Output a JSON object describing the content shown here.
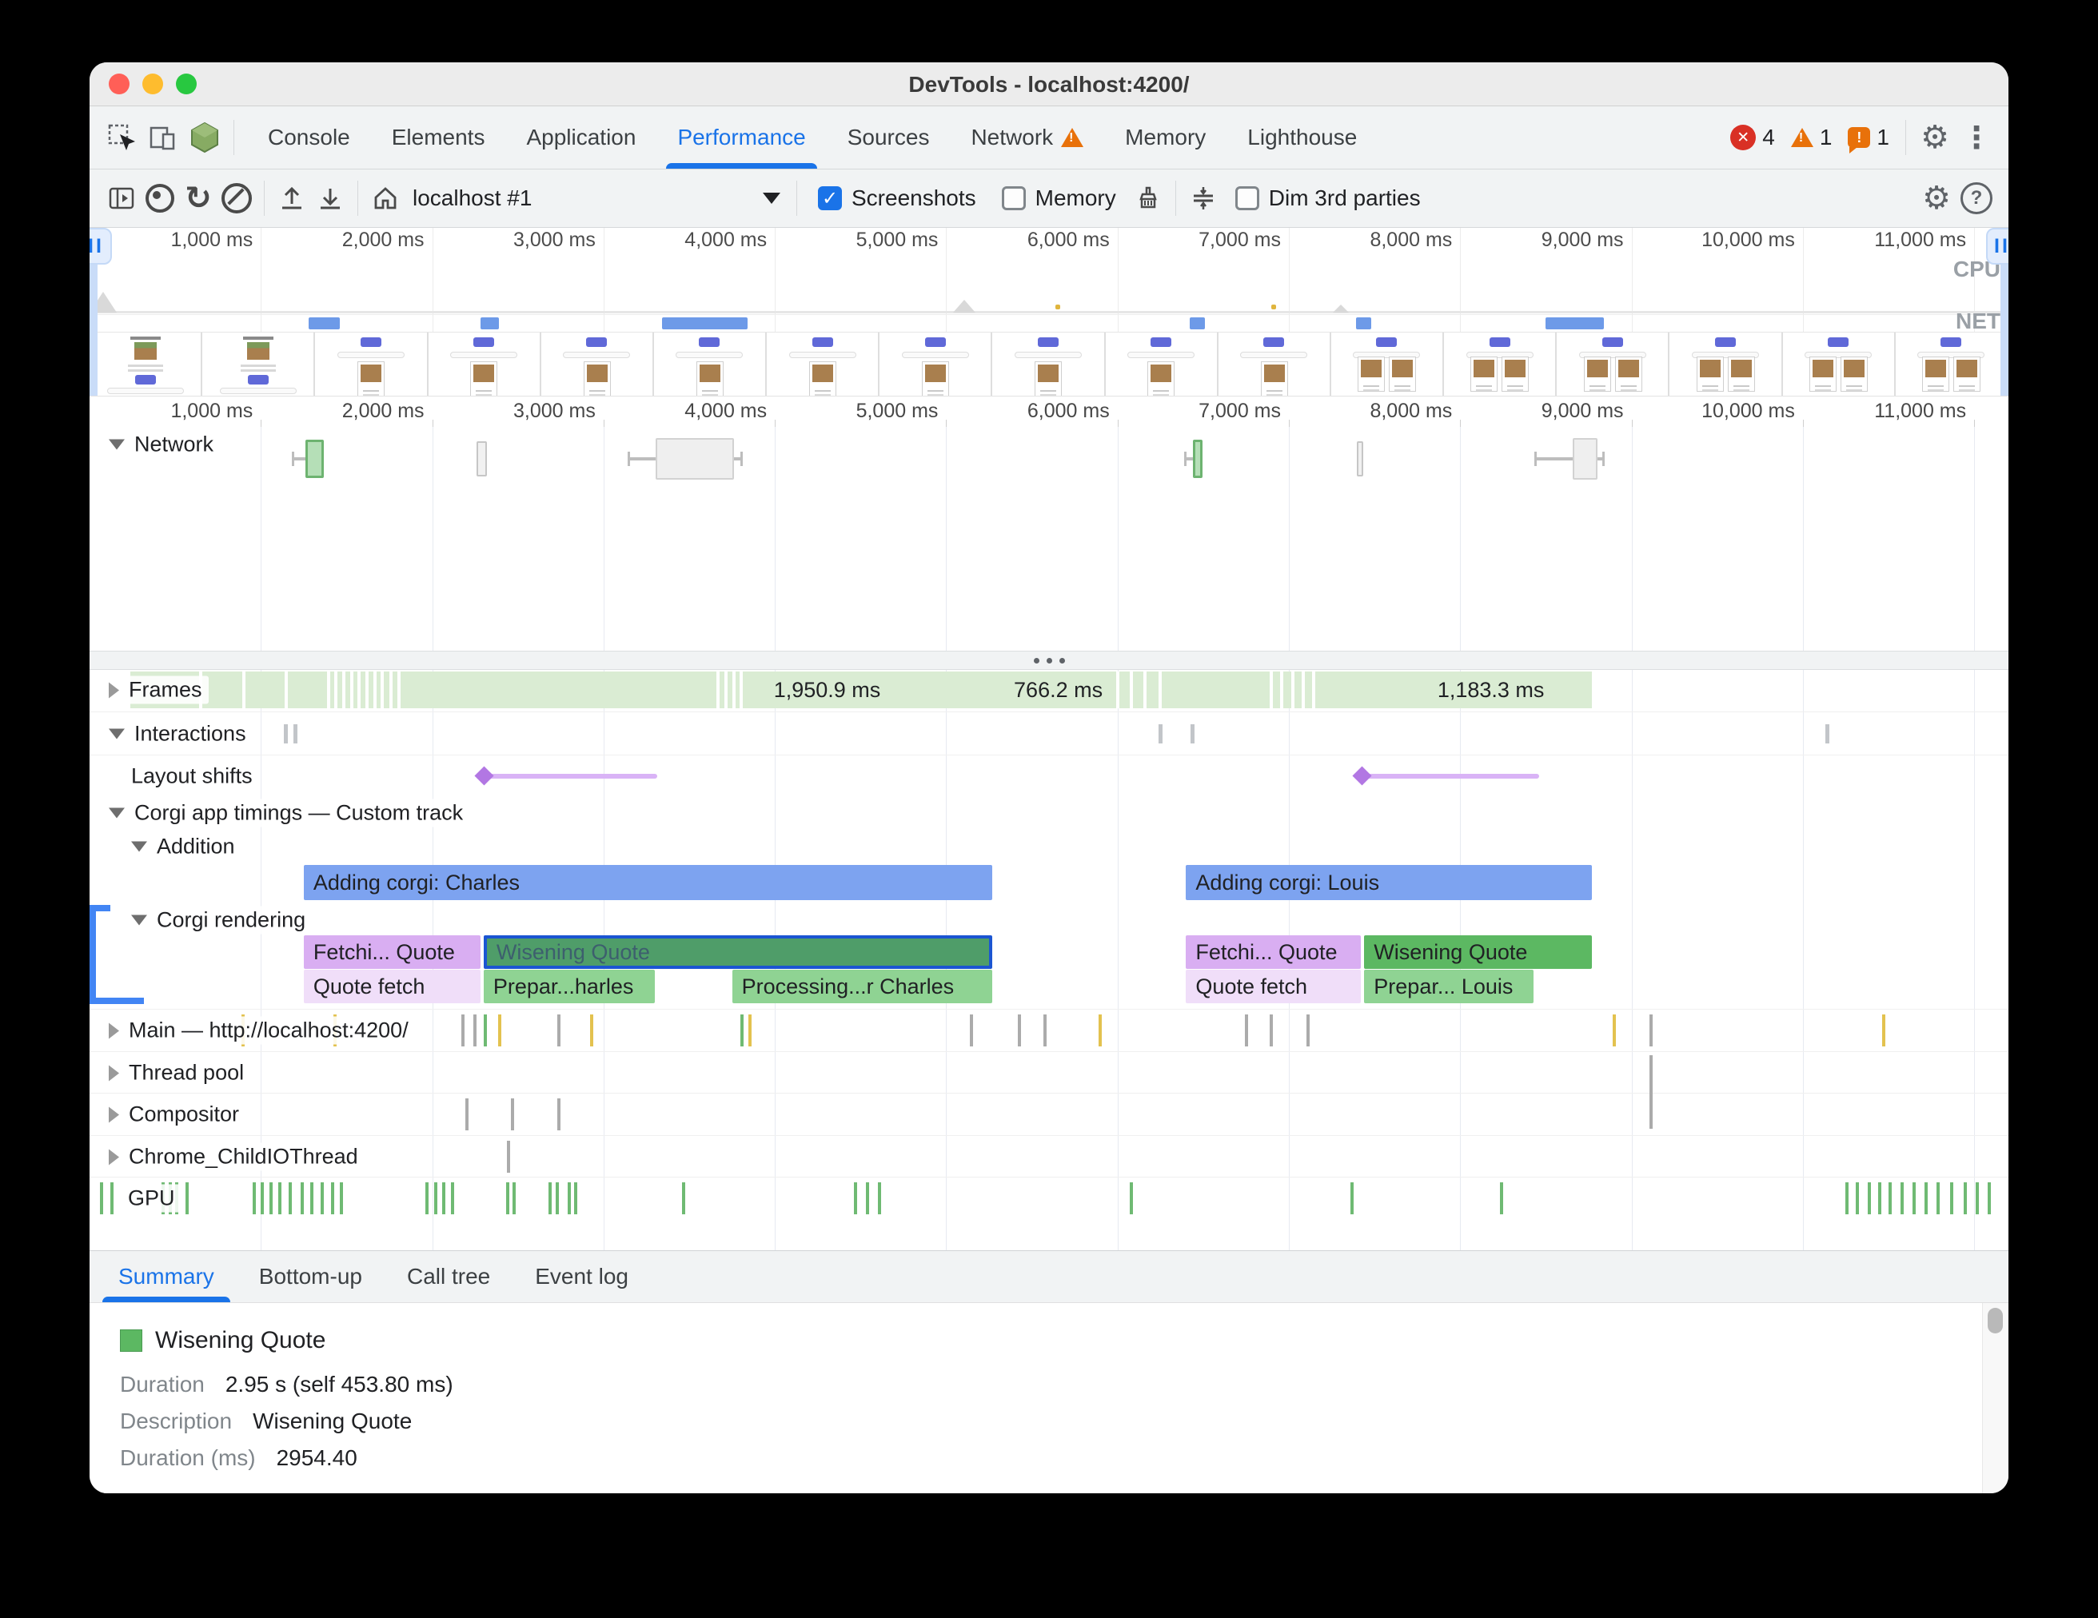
{
  "window": {
    "title": "DevTools - localhost:4200/"
  },
  "tabbar": {
    "tabs": [
      {
        "label": "Console"
      },
      {
        "label": "Elements"
      },
      {
        "label": "Application"
      },
      {
        "label": "Performance",
        "active": true
      },
      {
        "label": "Sources"
      },
      {
        "label": "Network",
        "warning": true
      },
      {
        "label": "Memory"
      },
      {
        "label": "Lighthouse"
      }
    ],
    "error_count": "4",
    "warning_count": "1",
    "issue_count": "1"
  },
  "toolbar": {
    "session_label": "localhost #1",
    "screenshots_label": "Screenshots",
    "memory_label": "Memory",
    "dim_label": "Dim 3rd parties",
    "screenshots_checked": true,
    "memory_checked": false,
    "dim_checked": false
  },
  "timeline": {
    "total_ms": 11200,
    "ticks": [
      {
        "ms": 1000,
        "label": "1,000 ms"
      },
      {
        "ms": 2000,
        "label": "2,000 ms"
      },
      {
        "ms": 3000,
        "label": "3,000 ms"
      },
      {
        "ms": 4000,
        "label": "4,000 ms"
      },
      {
        "ms": 5000,
        "label": "5,000 ms"
      },
      {
        "ms": 6000,
        "label": "6,000 ms"
      },
      {
        "ms": 7000,
        "label": "7,000 ms"
      },
      {
        "ms": 8000,
        "label": "8,000 ms"
      },
      {
        "ms": 9000,
        "label": "9,000 ms"
      },
      {
        "ms": 10000,
        "label": "10,000 ms"
      },
      {
        "ms": 11000,
        "label": "11,000 ms"
      }
    ]
  },
  "overview": {
    "cpu_label": "CPU",
    "net_label": "NET",
    "net_bars": [
      {
        "start": 1280,
        "end": 1460
      },
      {
        "start": 2280,
        "end": 2390
      },
      {
        "start": 3340,
        "end": 3840
      },
      {
        "start": 6420,
        "end": 6510
      },
      {
        "start": 7390,
        "end": 7480
      },
      {
        "start": 8500,
        "end": 8840
      }
    ],
    "thumbs": [
      "v1",
      "v1",
      "v2",
      "v2",
      "v2",
      "v2",
      "v2",
      "v2",
      "v2",
      "v2",
      "v2",
      "v3",
      "v3",
      "v3",
      "v3",
      "v3",
      "v3"
    ]
  },
  "tracks": {
    "network": {
      "label": "Network",
      "requests": [
        {
          "start": 1261,
          "end": 1368,
          "kind": "green",
          "whisker_start": 1180
        },
        {
          "start": 2260,
          "end": 2320,
          "kind": "gray"
        },
        {
          "start": 3305,
          "end": 3762,
          "kind": "gray",
          "whisker_start": 3140,
          "whisker_end": 3800,
          "tall": true
        },
        {
          "start": 6441,
          "end": 6495,
          "kind": "green",
          "whisker_start": 6390
        },
        {
          "start": 7397,
          "end": 7435,
          "kind": "gray"
        },
        {
          "start": 8657,
          "end": 8801,
          "kind": "gray",
          "whisker_start": 8433,
          "whisker_end": 8830,
          "tall": true
        }
      ]
    },
    "frames": {
      "label": "Frames",
      "band": {
        "start": 240,
        "end": 8770
      },
      "gaps": [
        640,
        890,
        1140,
        1385,
        1430,
        1475,
        1520,
        1565,
        1610,
        1655,
        1700,
        1748,
        1795,
        3660,
        3705,
        3750,
        3795,
        5990,
        6070,
        6150,
        6240,
        6890,
        6950,
        7015,
        7075,
        7135
      ],
      "labels": [
        {
          "text": "1,950.9 ms",
          "ms": 4305
        },
        {
          "text": "766.2 ms",
          "ms": 5654
        },
        {
          "text": "1,183.3 ms",
          "ms": 8179
        }
      ]
    },
    "interactions": {
      "label": "Interactions",
      "ticks": [
        1135,
        1190,
        6240,
        6425,
        10130
      ]
    },
    "layout_shifts": {
      "label": "Layout shifts",
      "shifts": [
        {
          "start": 2302,
          "end": 3315
        },
        {
          "start": 7426,
          "end": 8462
        }
      ]
    },
    "custom": {
      "label": "Corgi app timings — Custom track",
      "addition_label": "Addition",
      "rendering_label": "Corgi rendering",
      "addition_bars": [
        {
          "label": "Adding corgi: Charles",
          "start": 1250,
          "end": 5270,
          "kind": "blue"
        },
        {
          "label": "Adding corgi: Louis",
          "start": 6400,
          "end": 8770,
          "kind": "blue"
        }
      ],
      "rendering_row1": [
        {
          "label": "Fetchi... Quote",
          "start": 1250,
          "end": 2280,
          "kind": "purple"
        },
        {
          "label": "Wisening Quote",
          "start": 2300,
          "end": 5270,
          "kind": "green_selected",
          "selected": true
        },
        {
          "label": "Fetchi... Quote",
          "start": 6400,
          "end": 7420,
          "kind": "purple"
        },
        {
          "label": "Wisening Quote",
          "start": 7440,
          "end": 8770,
          "kind": "green"
        }
      ],
      "rendering_row2": [
        {
          "label": "Quote fetch",
          "start": 1250,
          "end": 2280,
          "kind": "purple_light"
        },
        {
          "label": "Prepar...harles",
          "start": 2300,
          "end": 3300,
          "kind": "green_light"
        },
        {
          "label": "Processing...r Charles",
          "start": 3750,
          "end": 5270,
          "kind": "green_light"
        },
        {
          "label": "Quote fetch",
          "start": 6400,
          "end": 7420,
          "kind": "purple_light"
        },
        {
          "label": "Prepar... Louis",
          "start": 7440,
          "end": 8430,
          "kind": "green_light"
        }
      ]
    },
    "threads": [
      {
        "label": "Main — http://localhost:4200/",
        "ticks": [
          [
            888,
            "y"
          ],
          [
            1425,
            "y"
          ],
          [
            2171,
            "g"
          ],
          [
            2240,
            "g"
          ],
          [
            2300,
            "gr"
          ],
          [
            2386,
            "y"
          ],
          [
            2731,
            "g"
          ],
          [
            2922,
            "y"
          ],
          [
            3800,
            "gr"
          ],
          [
            3846,
            "y"
          ],
          [
            5139,
            "g"
          ],
          [
            5420,
            "g"
          ],
          [
            5568,
            "g"
          ],
          [
            5890,
            "y"
          ],
          [
            6744,
            "g"
          ],
          [
            6889,
            "g"
          ],
          [
            7103,
            "g"
          ],
          [
            8891,
            "y"
          ],
          [
            9106,
            "g"
          ],
          [
            10464,
            "y"
          ]
        ]
      },
      {
        "label": "Thread pool",
        "ticks": [
          [
            9106,
            "g",
            "tall"
          ]
        ]
      },
      {
        "label": "Compositor",
        "ticks": [
          [
            2195,
            "g"
          ],
          [
            2460,
            "g"
          ],
          [
            2731,
            "g"
          ]
        ]
      },
      {
        "label": "Chrome_ChildIOThread",
        "ticks": [
          [
            2437,
            "g"
          ]
        ]
      },
      {
        "label": "GPU",
        "no_arrow": true,
        "ticks": [
          [
            60,
            "gr"
          ],
          [
            120,
            "gr"
          ],
          [
            420,
            "gr"
          ],
          [
            460,
            "gr"
          ],
          [
            500,
            "gr"
          ],
          [
            560,
            "gr"
          ],
          [
            950,
            "gr"
          ],
          [
            1000,
            "gr"
          ],
          [
            1050,
            "gr"
          ],
          [
            1100,
            "gr"
          ],
          [
            1160,
            "gr"
          ],
          [
            1230,
            "gr"
          ],
          [
            1290,
            "gr"
          ],
          [
            1350,
            "gr"
          ],
          [
            1410,
            "gr"
          ],
          [
            1460,
            "gr"
          ],
          [
            1960,
            "gr"
          ],
          [
            2010,
            "gr"
          ],
          [
            2060,
            "gr"
          ],
          [
            2110,
            "gr"
          ],
          [
            2430,
            "gr"
          ],
          [
            2470,
            "gr"
          ],
          [
            2680,
            "gr"
          ],
          [
            2720,
            "gr"
          ],
          [
            2790,
            "gr"
          ],
          [
            2830,
            "gr"
          ],
          [
            3460,
            "gr"
          ],
          [
            4460,
            "gr"
          ],
          [
            4530,
            "gr"
          ],
          [
            4600,
            "gr"
          ],
          [
            6070,
            "gr"
          ],
          [
            7360,
            "gr"
          ],
          [
            8230,
            "gr"
          ],
          [
            10250,
            "gr"
          ],
          [
            10310,
            "gr"
          ],
          [
            10380,
            "gr"
          ],
          [
            10440,
            "gr"
          ],
          [
            10500,
            "gr"
          ],
          [
            10570,
            "gr"
          ],
          [
            10640,
            "gr"
          ],
          [
            10710,
            "gr"
          ],
          [
            10780,
            "gr"
          ],
          [
            10860,
            "gr"
          ],
          [
            10940,
            "gr"
          ],
          [
            11010,
            "gr"
          ],
          [
            11080,
            "gr"
          ]
        ]
      }
    ]
  },
  "bottom_tabs": [
    {
      "label": "Summary",
      "active": true
    },
    {
      "label": "Bottom-up"
    },
    {
      "label": "Call tree"
    },
    {
      "label": "Event log"
    }
  ],
  "summary": {
    "title": "Wisening Quote",
    "rows": [
      {
        "label": "Duration",
        "value": "2.95 s (self 453.80 ms)"
      },
      {
        "label": "Description",
        "value": "Wisening Quote"
      },
      {
        "label": "Duration (ms)",
        "value": "2954.40"
      }
    ]
  },
  "colors": {
    "accent_blue": "#1a73e8",
    "bar_blue": "#7da3f0",
    "bar_purple": "#d9aef2",
    "bar_purple_light": "#f0def9",
    "bar_green": "#5cb862",
    "bar_green_light": "#8fd393",
    "bar_green_selected": "#4f9d69",
    "selected_border": "#1b55d2",
    "frames_band": "#daecd3",
    "net_blue": "#6d9ae8",
    "shift_line": "#d9b3f6",
    "shift_diamond": "#b277e3",
    "error_red": "#d93025",
    "warning_orange": "#e8710a",
    "summary_swatch": "#5cb862"
  }
}
